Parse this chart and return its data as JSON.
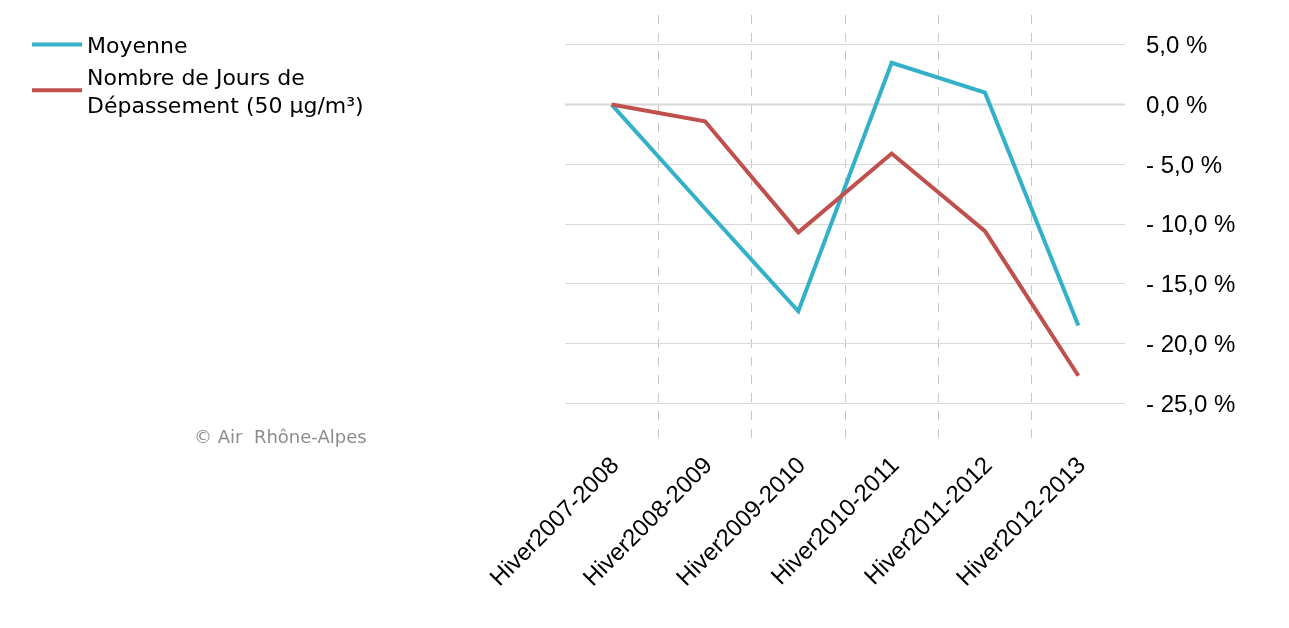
{
  "chart_data": {
    "type": "line",
    "categories": [
      "Hiver2007-2008",
      "Hiver2008-2009",
      "Hiver2009-2010",
      "Hiver2010-2011",
      "Hiver2011-2012",
      "Hiver2012-2013"
    ],
    "series": [
      {
        "name": "Moyenne",
        "color": "#35b0c9",
        "values": [
          0,
          -8.7,
          -17.3,
          3.5,
          1.0,
          -18.5
        ]
      },
      {
        "name": "Nombre de Jours de\nDépassement (50 µg/m³)",
        "color": "#c0504d",
        "values": [
          0,
          -1.4,
          -10.7,
          -4.1,
          -10.6,
          -22.7
        ]
      }
    ],
    "ylim": [
      -28.5,
      7.5
    ],
    "yticks": [
      {
        "value": 5,
        "label": "5,0 %"
      },
      {
        "value": 0,
        "label": "0,0 %"
      },
      {
        "value": -5,
        "label": "- 5,0 %"
      },
      {
        "value": -10,
        "label": "- 10,0 %"
      },
      {
        "value": -15,
        "label": "- 15,0 %"
      },
      {
        "value": -20,
        "label": "- 20,0 %"
      },
      {
        "value": -25,
        "label": "- 25,0 %"
      }
    ],
    "ref_lines": [
      {
        "axis": "y",
        "value": 0,
        "color": "#a6a6a6"
      }
    ],
    "annotations": [
      "© Air  Rhône-Alpes"
    ],
    "grid": true,
    "legend": "left",
    "marker": "none",
    "line_style": "solid"
  }
}
